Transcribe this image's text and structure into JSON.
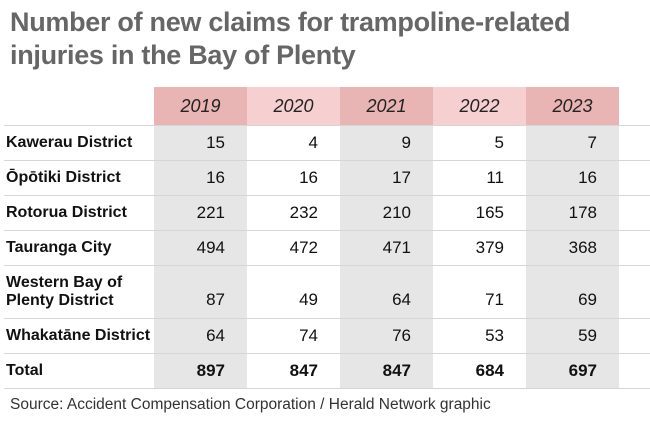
{
  "title_line1": "Number of new claims for trampoline-related",
  "title_line2": "injuries in the Bay of Plenty",
  "source": "Source: Accident Compensation Corporation / Herald Network graphic",
  "colors": {
    "title": "#666666",
    "header_dark": "#e8b4b4",
    "header_light": "#f6d0d0",
    "column_shade": "#e6e6e6"
  },
  "chart_data": {
    "type": "table",
    "columns": [
      "2019",
      "2020",
      "2021",
      "2022",
      "2023"
    ],
    "rows": [
      {
        "label": "Kawerau District",
        "values": [
          "15",
          "4",
          "9",
          "5",
          "7"
        ]
      },
      {
        "label": "Ōpōtiki District",
        "values": [
          "16",
          "16",
          "17",
          "11",
          "16"
        ]
      },
      {
        "label": "Rotorua District",
        "values": [
          "221",
          "232",
          "210",
          "165",
          "178"
        ]
      },
      {
        "label": "Tauranga City",
        "values": [
          "494",
          "472",
          "471",
          "379",
          "368"
        ]
      },
      {
        "label": "Western Bay of Plenty District",
        "label_lines": [
          "Western Bay of",
          "Plenty District"
        ],
        "values": [
          "87",
          "49",
          "64",
          "71",
          "69"
        ]
      },
      {
        "label": "Whakatāne District",
        "values": [
          "64",
          "74",
          "76",
          "53",
          "59"
        ]
      },
      {
        "label": "Total",
        "values": [
          "897",
          "847",
          "847",
          "684",
          "697"
        ],
        "total": true
      }
    ]
  }
}
